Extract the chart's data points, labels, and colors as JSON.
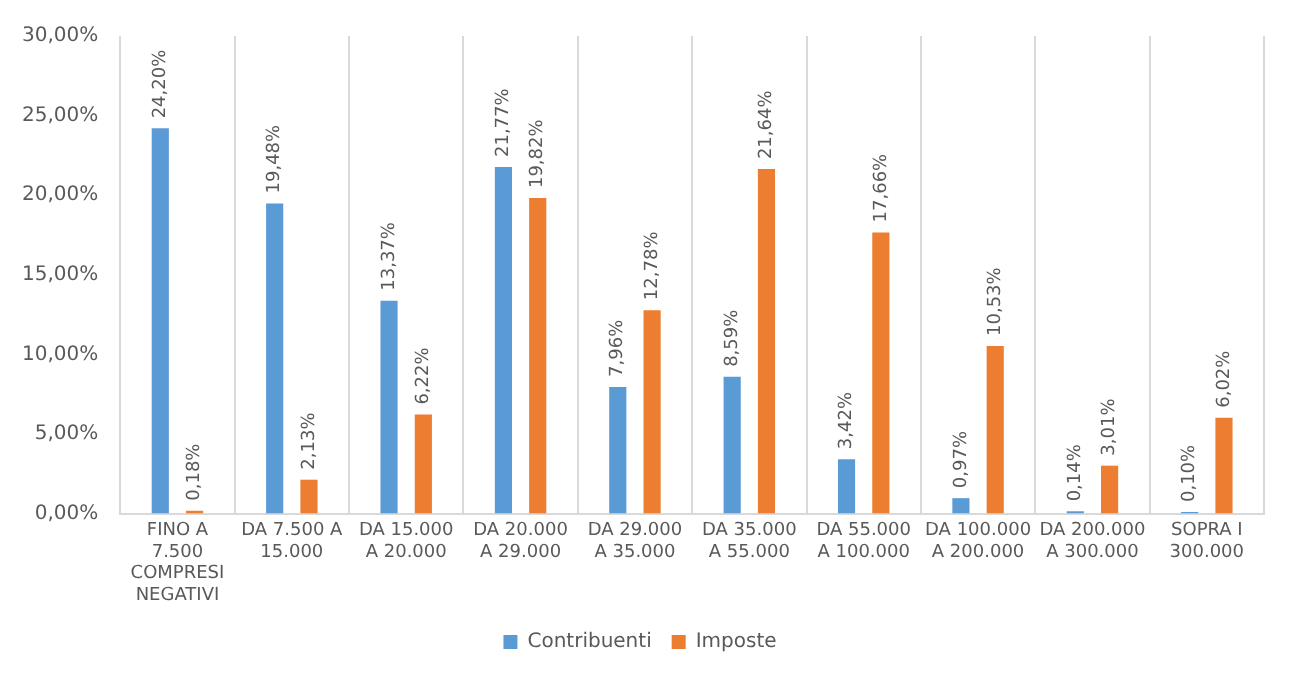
{
  "chart_data": {
    "type": "bar",
    "categories": [
      "FINO A 7.500 COMPRESI NEGATIVI",
      "DA 7.500 A 15.000",
      "DA 15.000 A 20.000",
      "DA 20.000 A 29.000",
      "DA 29.000 A 35.000",
      "DA 35.000 A 55.000",
      "DA 55.000 A 100.000",
      "DA 100.000 A 200.000",
      "DA 200.000 A 300.000",
      "SOPRA I 300.000"
    ],
    "series": [
      {
        "name": "Contribuenti",
        "color": "#5b9bd5",
        "values": [
          24.2,
          19.48,
          13.37,
          21.77,
          7.96,
          8.59,
          3.42,
          0.97,
          0.14,
          0.1
        ],
        "value_labels": [
          "24,20%",
          "19,48%",
          "13,37%",
          "21,77%",
          "7,96%",
          "8,59%",
          "3,42%",
          "0,97%",
          "0,14%",
          "0,10%"
        ]
      },
      {
        "name": "Imposte",
        "color": "#ed7d31",
        "values": [
          0.18,
          2.13,
          6.22,
          19.82,
          12.78,
          21.64,
          17.66,
          10.53,
          3.01,
          6.02
        ],
        "value_labels": [
          "0,18%",
          "2,13%",
          "6,22%",
          "19,82%",
          "12,78%",
          "21,64%",
          "17,66%",
          "10,53%",
          "3,01%",
          "6,02%"
        ]
      }
    ],
    "ylim": [
      0,
      30
    ],
    "yticks": [
      {
        "value": 0,
        "label": "0,00%"
      },
      {
        "value": 5,
        "label": "5,00%"
      },
      {
        "value": 10,
        "label": "10,00%"
      },
      {
        "value": 15,
        "label": "15,00%"
      },
      {
        "value": 20,
        "label": "20,00%"
      },
      {
        "value": 25,
        "label": "25,00%"
      },
      {
        "value": 30,
        "label": "30,00%"
      }
    ],
    "grid": "x",
    "legend": "bottom"
  }
}
